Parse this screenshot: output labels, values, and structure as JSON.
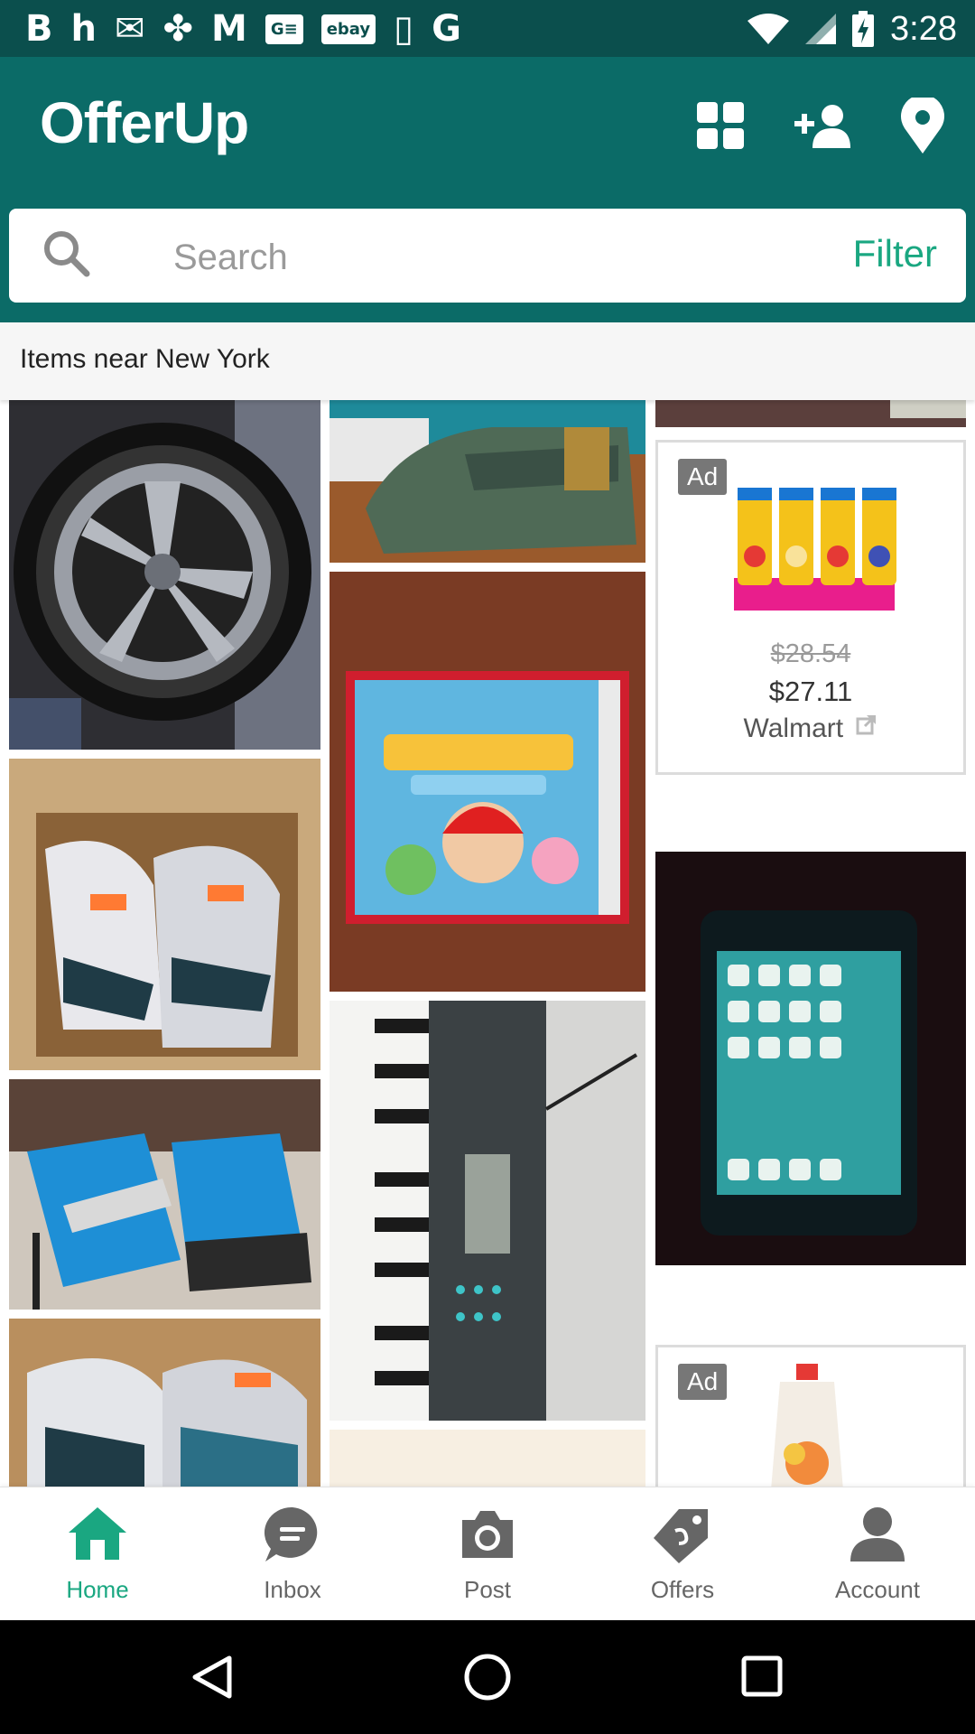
{
  "status_bar": {
    "time": "3:28",
    "notifications": [
      "B",
      "h",
      "✉",
      "✤",
      "M",
      "G≡",
      "ebay",
      "▯",
      "G"
    ]
  },
  "app": {
    "logo": "OfferUp",
    "icons": [
      "grid-icon",
      "add-person-icon",
      "location-pin-icon"
    ]
  },
  "search": {
    "placeholder": "Search",
    "value": "",
    "filter_label": "Filter"
  },
  "location_header": "Items near New York",
  "feed": {
    "items": [
      {
        "name": "wheel-rim-listing",
        "photo": "chrome wheel rim"
      },
      {
        "name": "sneakers-in-box-listing",
        "photo": "sneakers in box"
      },
      {
        "name": "high-top-heels-listing",
        "photo": "blue high heel sneakers"
      },
      {
        "name": "sneakers-box-listing",
        "photo": "sneakers in box"
      },
      {
        "name": "green-sneaker-listing",
        "photo": "green leather sneaker"
      },
      {
        "name": "mario-party-3ds-listing",
        "photo": "Mario Party Star Rush 3DS game"
      },
      {
        "name": "keyboard-piano-listing",
        "photo": "electronic keyboard"
      },
      {
        "name": "iphone-listing",
        "photo": "smartphone"
      }
    ],
    "ads": [
      {
        "label": "Ad",
        "old_price": "$28.54",
        "price": "$27.11",
        "merchant": "Walmart",
        "product": "Puffs"
      },
      {
        "label": "Ad",
        "product": "Plum organics peach, banana & apricot"
      }
    ]
  },
  "bottom_nav": [
    {
      "label": "Home",
      "icon": "home-icon",
      "active": true
    },
    {
      "label": "Inbox",
      "icon": "chat-icon",
      "active": false
    },
    {
      "label": "Post",
      "icon": "camera-icon",
      "active": false
    },
    {
      "label": "Offers",
      "icon": "tag-icon",
      "active": false
    },
    {
      "label": "Account",
      "icon": "person-icon",
      "active": false
    }
  ],
  "colors": {
    "primary": "#0b6b67",
    "status_bar": "#0b4f4d",
    "accent": "#1aa781"
  }
}
